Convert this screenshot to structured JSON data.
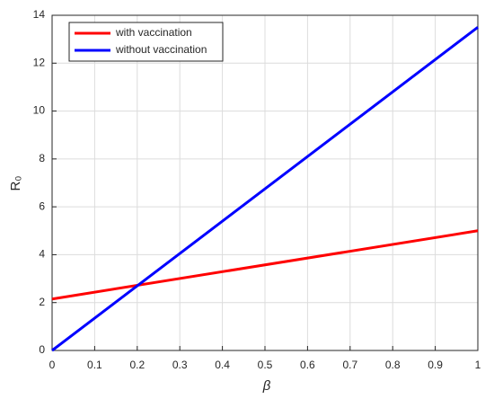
{
  "chart_data": {
    "type": "line",
    "x_label": "β",
    "y_label": "R₀",
    "x": [
      0,
      1
    ],
    "series": [
      {
        "name": "with vaccination",
        "color": "#ff0000",
        "values": [
          2.15,
          5.0
        ]
      },
      {
        "name": "without vaccination",
        "color": "#0000ff",
        "values": [
          0,
          13.5
        ]
      }
    ],
    "xlim": [
      0,
      1
    ],
    "xticks": [
      0,
      0.1,
      0.2,
      0.3,
      0.4,
      0.5,
      0.6,
      0.7,
      0.8,
      0.9,
      1
    ],
    "ylim": [
      0,
      14
    ],
    "yticks": [
      0,
      2,
      4,
      6,
      8,
      10,
      12,
      14
    ],
    "grid": true,
    "legend": "upper left"
  }
}
